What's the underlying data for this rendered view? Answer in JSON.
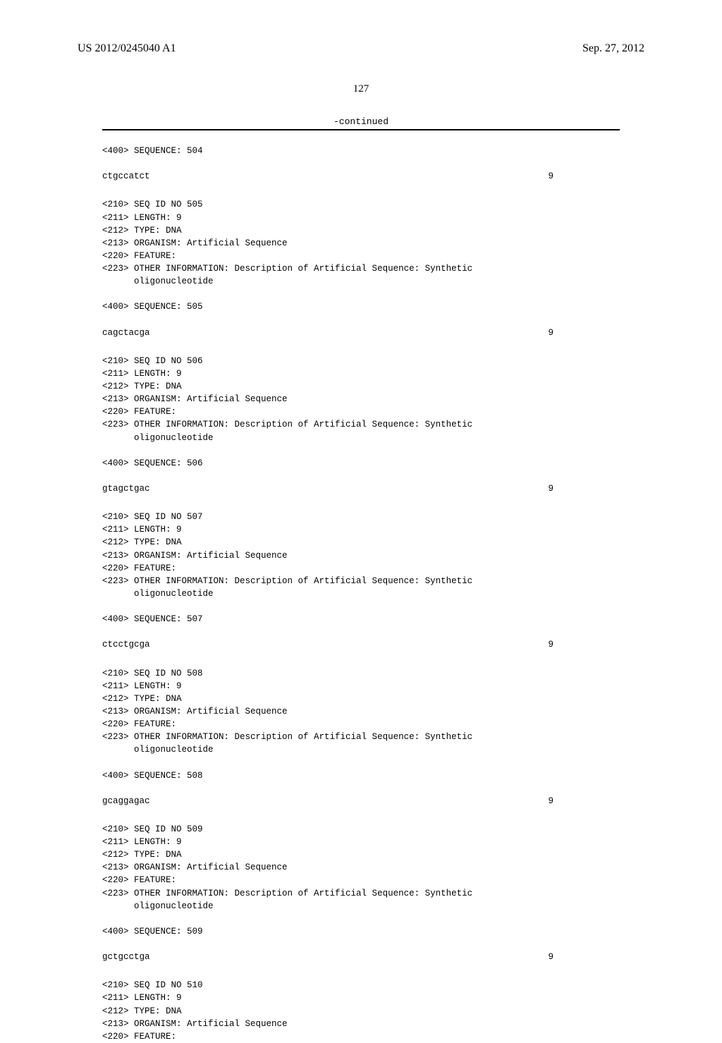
{
  "header": {
    "pubNumber": "US 2012/0245040 A1",
    "pubDate": "Sep. 27, 2012"
  },
  "pageNumber": "127",
  "continuedLabel": "-continued",
  "blocks": [
    {
      "preLines": [
        "<400> SEQUENCE: 504"
      ],
      "sequence": "ctgccatct",
      "seqNum": "9"
    },
    {
      "preLines": [
        "<210> SEQ ID NO 505",
        "<211> LENGTH: 9",
        "<212> TYPE: DNA",
        "<213> ORGANISM: Artificial Sequence",
        "<220> FEATURE:",
        "<223> OTHER INFORMATION: Description of Artificial Sequence: Synthetic",
        "      oligonucleotide",
        "",
        "<400> SEQUENCE: 505"
      ],
      "sequence": "cagctacga",
      "seqNum": "9"
    },
    {
      "preLines": [
        "<210> SEQ ID NO 506",
        "<211> LENGTH: 9",
        "<212> TYPE: DNA",
        "<213> ORGANISM: Artificial Sequence",
        "<220> FEATURE:",
        "<223> OTHER INFORMATION: Description of Artificial Sequence: Synthetic",
        "      oligonucleotide",
        "",
        "<400> SEQUENCE: 506"
      ],
      "sequence": "gtagctgac",
      "seqNum": "9"
    },
    {
      "preLines": [
        "<210> SEQ ID NO 507",
        "<211> LENGTH: 9",
        "<212> TYPE: DNA",
        "<213> ORGANISM: Artificial Sequence",
        "<220> FEATURE:",
        "<223> OTHER INFORMATION: Description of Artificial Sequence: Synthetic",
        "      oligonucleotide",
        "",
        "<400> SEQUENCE: 507"
      ],
      "sequence": "ctcctgcga",
      "seqNum": "9"
    },
    {
      "preLines": [
        "<210> SEQ ID NO 508",
        "<211> LENGTH: 9",
        "<212> TYPE: DNA",
        "<213> ORGANISM: Artificial Sequence",
        "<220> FEATURE:",
        "<223> OTHER INFORMATION: Description of Artificial Sequence: Synthetic",
        "      oligonucleotide",
        "",
        "<400> SEQUENCE: 508"
      ],
      "sequence": "gcaggagac",
      "seqNum": "9"
    },
    {
      "preLines": [
        "<210> SEQ ID NO 509",
        "<211> LENGTH: 9",
        "<212> TYPE: DNA",
        "<213> ORGANISM: Artificial Sequence",
        "<220> FEATURE:",
        "<223> OTHER INFORMATION: Description of Artificial Sequence: Synthetic",
        "      oligonucleotide",
        "",
        "<400> SEQUENCE: 509"
      ],
      "sequence": "gctgcctga",
      "seqNum": "9"
    },
    {
      "preLines": [
        "<210> SEQ ID NO 510",
        "<211> LENGTH: 9",
        "<212> TYPE: DNA",
        "<213> ORGANISM: Artificial Sequence",
        "<220> FEATURE:"
      ],
      "sequence": "",
      "seqNum": ""
    }
  ]
}
